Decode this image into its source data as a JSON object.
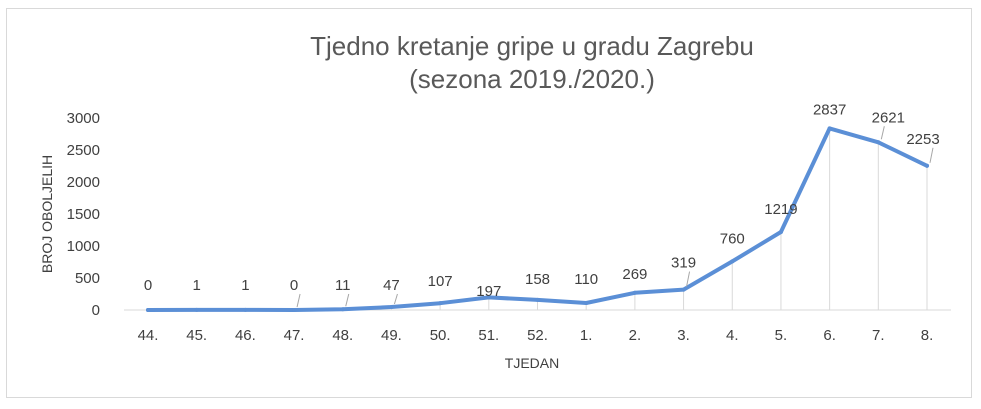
{
  "chart_data": {
    "type": "line",
    "title": [
      "Tjedno kretanje gripe u gradu Zagrebu",
      "(sezona 2019./2020.)"
    ],
    "xlabel": "TJEDAN",
    "ylabel": "BROJ OBOLJELIH",
    "ylim": [
      0,
      3000
    ],
    "yticks": [
      "0",
      "500",
      "1000",
      "1500",
      "2000",
      "2500",
      "3000"
    ],
    "categories": [
      "44.",
      "45.",
      "46.",
      "47.",
      "48.",
      "49.",
      "50.",
      "51.",
      "52.",
      "1.",
      "2.",
      "3.",
      "4.",
      "5.",
      "6.",
      "7.",
      "8."
    ],
    "values": [
      0,
      1,
      1,
      0,
      11,
      47,
      107,
      197,
      158,
      110,
      269,
      319,
      760,
      1219,
      2837,
      2621,
      2253
    ],
    "line_color": "#5b8fd6",
    "drop_line_color": "#d9d9d9",
    "grid": false
  }
}
